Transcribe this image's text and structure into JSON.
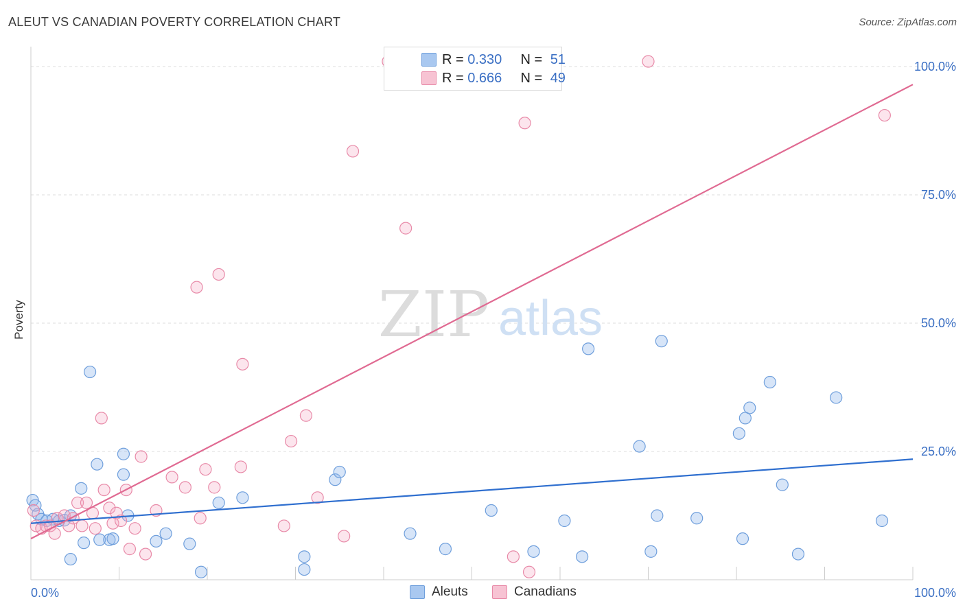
{
  "header": {
    "title": "ALEUT VS CANADIAN POVERTY CORRELATION CHART",
    "source": "Source: ZipAtlas.com"
  },
  "watermark": {
    "zip": "ZIP",
    "atlas": "atlas"
  },
  "legend_top": {
    "rows": [
      {
        "r_label": "R =",
        "r_value": "0.330",
        "n_label": "N =",
        "n_value": "51",
        "color": "#a9c8f0",
        "border": "#6f9fdc"
      },
      {
        "r_label": "R =",
        "r_value": "0.666",
        "n_label": "N =",
        "n_value": "49",
        "color": "#f7c3d3",
        "border": "#e88aa8"
      }
    ]
  },
  "legend_bottom": {
    "items": [
      {
        "label": "Aleuts",
        "color": "#a9c8f0",
        "border": "#6f9fdc"
      },
      {
        "label": "Canadians",
        "color": "#f7c3d3",
        "border": "#e88aa8"
      }
    ]
  },
  "colors": {
    "aleut_fill": "rgba(140,180,235,0.35)",
    "aleut_stroke": "#6f9fdc",
    "aleut_line": "#2f6fcf",
    "canadian_fill": "rgba(245,170,195,0.30)",
    "canadian_stroke": "#e88aa8",
    "canadian_line": "#e06a92",
    "grid": "#dcdcdc",
    "tick_text": "#3a6fc4"
  },
  "chart_data": {
    "type": "scatter",
    "title": "ALEUT VS CANADIAN POVERTY CORRELATION CHART",
    "xlabel": "",
    "ylabel": "Poverty",
    "xlim": [
      0,
      100
    ],
    "ylim": [
      0,
      105
    ],
    "x_tick_labels": [
      "0.0%",
      "100.0%"
    ],
    "y_ticks": [
      25,
      50,
      75,
      100
    ],
    "y_tick_labels": [
      "25.0%",
      "50.0%",
      "75.0%",
      "100.0%"
    ],
    "grid": true,
    "legend_position": "top-center",
    "series": [
      {
        "name": "Aleuts",
        "r": 0.33,
        "n": 51,
        "trend": [
          [
            0,
            11.0
          ],
          [
            100,
            23.5
          ]
        ],
        "points": [
          [
            0.2,
            15.5
          ],
          [
            0.8,
            12.8
          ],
          [
            1.2,
            11.8
          ],
          [
            1.8,
            11.5
          ],
          [
            2.5,
            11.8
          ],
          [
            3.2,
            11.5
          ],
          [
            3.8,
            11.6
          ],
          [
            4.5,
            12.5
          ],
          [
            5.7,
            17.8
          ],
          [
            6.0,
            7.2
          ],
          [
            4.5,
            4.0
          ],
          [
            6.7,
            40.5
          ],
          [
            7.5,
            22.5
          ],
          [
            7.8,
            7.8
          ],
          [
            8.9,
            7.8
          ],
          [
            9.3,
            8.0
          ],
          [
            10.5,
            24.5
          ],
          [
            10.5,
            20.5
          ],
          [
            11.0,
            12.5
          ],
          [
            14.2,
            7.5
          ],
          [
            15.3,
            9.0
          ],
          [
            18.0,
            7.0
          ],
          [
            19.3,
            1.5
          ],
          [
            21.3,
            15.0
          ],
          [
            24.0,
            16.0
          ],
          [
            31.0,
            2.0
          ],
          [
            31.0,
            4.5
          ],
          [
            34.5,
            19.5
          ],
          [
            35.0,
            21.0
          ],
          [
            43.0,
            9.0
          ],
          [
            47.0,
            6.0
          ],
          [
            52.2,
            13.5
          ],
          [
            57.0,
            5.5
          ],
          [
            60.5,
            11.5
          ],
          [
            62.5,
            4.5
          ],
          [
            63.2,
            45.0
          ],
          [
            69.0,
            26.0
          ],
          [
            70.3,
            5.5
          ],
          [
            71.0,
            12.5
          ],
          [
            71.5,
            46.5
          ],
          [
            75.5,
            12.0
          ],
          [
            80.3,
            28.5
          ],
          [
            80.7,
            8.0
          ],
          [
            81.0,
            31.5
          ],
          [
            81.5,
            33.5
          ],
          [
            83.8,
            38.5
          ],
          [
            85.2,
            18.5
          ],
          [
            87.0,
            5.0
          ],
          [
            91.3,
            35.5
          ],
          [
            96.5,
            11.5
          ],
          [
            0.5,
            14.5
          ]
        ]
      },
      {
        "name": "Canadians",
        "r": 0.666,
        "n": 49,
        "trend": [
          [
            0,
            8.0
          ],
          [
            100,
            96.5
          ]
        ],
        "points": [
          [
            0.3,
            13.5
          ],
          [
            0.6,
            10.5
          ],
          [
            1.2,
            10.0
          ],
          [
            1.7,
            10.5
          ],
          [
            2.2,
            10.5
          ],
          [
            2.7,
            9.0
          ],
          [
            3.0,
            12.0
          ],
          [
            3.8,
            12.5
          ],
          [
            4.3,
            10.5
          ],
          [
            4.8,
            12.0
          ],
          [
            5.3,
            15.0
          ],
          [
            5.8,
            10.5
          ],
          [
            6.3,
            15.0
          ],
          [
            7.0,
            13.0
          ],
          [
            7.3,
            10.0
          ],
          [
            8.0,
            31.5
          ],
          [
            8.3,
            17.5
          ],
          [
            8.9,
            14.0
          ],
          [
            9.3,
            11.0
          ],
          [
            9.7,
            13.0
          ],
          [
            10.2,
            11.5
          ],
          [
            10.8,
            17.5
          ],
          [
            11.2,
            6.0
          ],
          [
            11.8,
            10.0
          ],
          [
            12.5,
            24.0
          ],
          [
            13.0,
            5.0
          ],
          [
            14.2,
            13.5
          ],
          [
            16.0,
            20.0
          ],
          [
            17.5,
            18.0
          ],
          [
            18.8,
            57.0
          ],
          [
            19.2,
            12.0
          ],
          [
            19.8,
            21.5
          ],
          [
            20.8,
            18.0
          ],
          [
            21.3,
            59.5
          ],
          [
            23.8,
            22.0
          ],
          [
            24.0,
            42.0
          ],
          [
            28.7,
            10.5
          ],
          [
            29.5,
            27.0
          ],
          [
            31.2,
            32.0
          ],
          [
            32.5,
            16.0
          ],
          [
            35.5,
            8.5
          ],
          [
            36.5,
            83.5
          ],
          [
            40.5,
            101.0
          ],
          [
            42.5,
            68.5
          ],
          [
            54.7,
            4.5
          ],
          [
            56.0,
            89.0
          ],
          [
            56.5,
            1.5
          ],
          [
            70.0,
            101.0
          ],
          [
            96.8,
            90.5
          ]
        ]
      }
    ]
  }
}
